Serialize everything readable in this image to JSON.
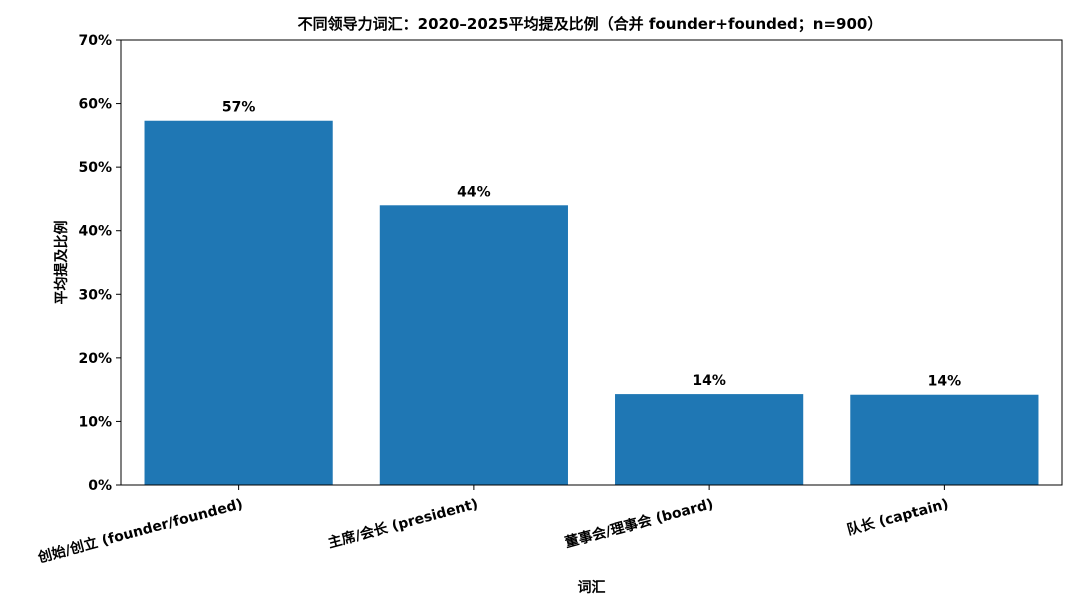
{
  "chart_data": {
    "type": "bar",
    "title": "不同领导力词汇：2020–2025平均提及比例（合并 founder+founded；n=900）",
    "xlabel": "词汇",
    "ylabel": "平均提及比例",
    "categories": [
      "创始/创立 (founder/founded)",
      "主席/会长 (president)",
      "董事会/理事会 (board)",
      "队长 (captain)"
    ],
    "values": [
      57.3,
      44.0,
      14.3,
      14.2
    ],
    "value_labels": [
      "57%",
      "44%",
      "14%",
      "14%"
    ],
    "ylim": [
      0,
      70
    ],
    "yticks": [
      0,
      10,
      20,
      30,
      40,
      50,
      60,
      70
    ],
    "ytick_labels": [
      "0%",
      "10%",
      "20%",
      "30%",
      "40%",
      "50%",
      "60%",
      "70%"
    ],
    "bar_color": "#1f77b4",
    "grid": false,
    "legend": false
  }
}
